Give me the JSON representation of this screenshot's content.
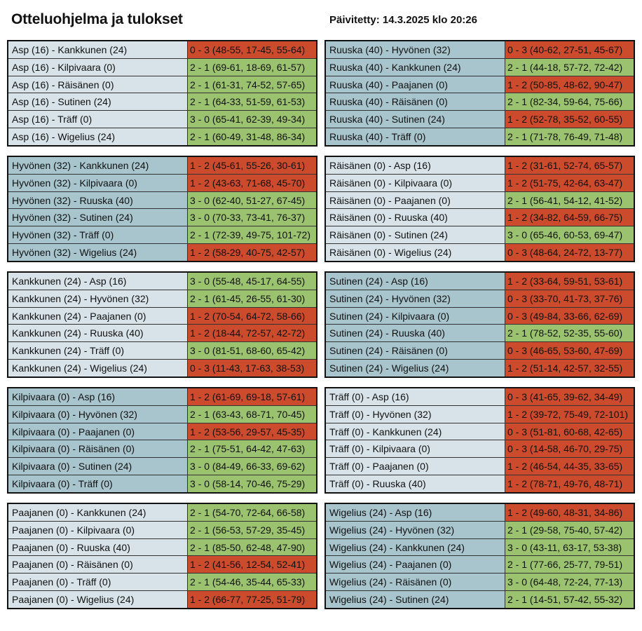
{
  "page": {
    "title": "Otteluohjelma ja tulokset",
    "updated": "Päivitetty: 14.3.2025 klo 20:26"
  },
  "groups": [
    {
      "shade": "light",
      "matches": [
        {
          "match": "Asp (16) - Kankkunen (24)",
          "result": "0 - 3 (48-55, 17-45, 55-64)",
          "outcome": "loss"
        },
        {
          "match": "Asp (16) - Kilpivaara (0)",
          "result": "2 - 1 (69-61, 18-69, 61-57)",
          "outcome": "win"
        },
        {
          "match": "Asp (16) - Räisänen (0)",
          "result": "2 - 1 (61-31, 74-52, 57-65)",
          "outcome": "win"
        },
        {
          "match": "Asp (16) - Sutinen (24)",
          "result": "2 - 1 (64-33, 51-59, 61-53)",
          "outcome": "win"
        },
        {
          "match": "Asp (16) - Träff (0)",
          "result": "3 - 0 (65-41, 62-39, 49-34)",
          "outcome": "win"
        },
        {
          "match": "Asp (16) - Wigelius (24)",
          "result": "2 - 1 (60-49, 31-48, 86-34)",
          "outcome": "win"
        }
      ]
    },
    {
      "shade": "dark",
      "matches": [
        {
          "match": "Ruuska (40) - Hyvönen (32)",
          "result": "0 - 3 (40-62, 27-51, 45-67)",
          "outcome": "loss"
        },
        {
          "match": "Ruuska (40) - Kankkunen (24)",
          "result": "2 - 1 (44-18, 57-72, 72-42)",
          "outcome": "win"
        },
        {
          "match": "Ruuska (40) - Paajanen (0)",
          "result": "1 - 2 (50-85, 48-62, 90-47)",
          "outcome": "loss"
        },
        {
          "match": "Ruuska (40) - Räisänen (0)",
          "result": "2 - 1 (82-34, 59-64, 75-66)",
          "outcome": "win"
        },
        {
          "match": "Ruuska (40) - Sutinen (24)",
          "result": "1 - 2 (52-78, 35-52, 60-55)",
          "outcome": "loss"
        },
        {
          "match": "Ruuska (40) - Träff (0)",
          "result": "2 - 1 (71-78, 76-49, 71-48)",
          "outcome": "win"
        }
      ]
    },
    {
      "shade": "dark",
      "matches": [
        {
          "match": "Hyvönen (32) - Kankkunen (24)",
          "result": "1 - 2 (45-61, 55-26, 30-61)",
          "outcome": "loss"
        },
        {
          "match": "Hyvönen (32) - Kilpivaara (0)",
          "result": "1 - 2 (43-63, 71-68, 45-70)",
          "outcome": "loss"
        },
        {
          "match": "Hyvönen (32) - Ruuska (40)",
          "result": "3 - 0 (62-40, 51-27, 67-45)",
          "outcome": "win"
        },
        {
          "match": "Hyvönen (32) - Sutinen (24)",
          "result": "3 - 0 (70-33, 73-41, 76-37)",
          "outcome": "win"
        },
        {
          "match": "Hyvönen (32) - Träff (0)",
          "result": "2 - 1 (72-39, 49-75, 101-72)",
          "outcome": "win"
        },
        {
          "match": "Hyvönen (32) - Wigelius (24)",
          "result": "1 - 2 (58-29, 40-75, 42-57)",
          "outcome": "loss"
        }
      ]
    },
    {
      "shade": "light",
      "matches": [
        {
          "match": "Räisänen (0) - Asp (16)",
          "result": "1 - 2 (31-61, 52-74, 65-57)",
          "outcome": "loss"
        },
        {
          "match": "Räisänen (0) - Kilpivaara (0)",
          "result": "1 - 2 (51-75, 42-64, 63-47)",
          "outcome": "loss"
        },
        {
          "match": "Räisänen (0) - Paajanen (0)",
          "result": "2 - 1 (56-41, 54-12, 41-52)",
          "outcome": "win"
        },
        {
          "match": "Räisänen (0) - Ruuska (40)",
          "result": "1 - 2 (34-82, 64-59, 66-75)",
          "outcome": "loss"
        },
        {
          "match": "Räisänen (0) - Sutinen (24)",
          "result": "3 - 0 (65-46, 60-53, 69-47)",
          "outcome": "win"
        },
        {
          "match": "Räisänen (0) - Wigelius (24)",
          "result": "0 - 3 (48-64, 24-72, 13-77)",
          "outcome": "loss"
        }
      ]
    },
    {
      "shade": "light",
      "matches": [
        {
          "match": "Kankkunen (24) - Asp (16)",
          "result": "3 - 0 (55-48, 45-17, 64-55)",
          "outcome": "win"
        },
        {
          "match": "Kankkunen (24) - Hyvönen (32)",
          "result": "2 - 1 (61-45, 26-55, 61-30)",
          "outcome": "win"
        },
        {
          "match": "Kankkunen (24) - Paajanen (0)",
          "result": "1 - 2 (70-54, 64-72, 58-66)",
          "outcome": "loss"
        },
        {
          "match": "Kankkunen (24) - Ruuska (40)",
          "result": "1 - 2 (18-44, 72-57, 42-72)",
          "outcome": "loss"
        },
        {
          "match": "Kankkunen (24) - Träff (0)",
          "result": "3 - 0 (81-51, 68-60, 65-42)",
          "outcome": "win"
        },
        {
          "match": "Kankkunen (24) - Wigelius (24)",
          "result": "0 - 3 (11-43, 17-63, 38-53)",
          "outcome": "loss"
        }
      ]
    },
    {
      "shade": "dark",
      "matches": [
        {
          "match": "Sutinen (24) - Asp (16)",
          "result": "1 - 2 (33-64, 59-51, 53-61)",
          "outcome": "loss"
        },
        {
          "match": "Sutinen (24) - Hyvönen (32)",
          "result": "0 - 3 (33-70, 41-73, 37-76)",
          "outcome": "loss"
        },
        {
          "match": "Sutinen (24) - Kilpivaara (0)",
          "result": "0 - 3 (49-84, 33-66, 62-69)",
          "outcome": "loss"
        },
        {
          "match": "Sutinen (24) - Ruuska (40)",
          "result": "2 - 1 (78-52, 52-35, 55-60)",
          "outcome": "win"
        },
        {
          "match": "Sutinen (24) - Räisänen (0)",
          "result": "0 - 3 (46-65, 53-60, 47-69)",
          "outcome": "loss"
        },
        {
          "match": "Sutinen (24) - Wigelius (24)",
          "result": "1 - 2 (51-14, 42-57, 32-55)",
          "outcome": "loss"
        }
      ]
    },
    {
      "shade": "dark",
      "matches": [
        {
          "match": "Kilpivaara (0) - Asp (16)",
          "result": "1 - 2 (61-69, 69-18, 57-61)",
          "outcome": "loss"
        },
        {
          "match": "Kilpivaara (0) - Hyvönen (32)",
          "result": "2 - 1 (63-43, 68-71, 70-45)",
          "outcome": "win"
        },
        {
          "match": "Kilpivaara (0) - Paajanen (0)",
          "result": "1 - 2 (53-56, 29-57, 45-35)",
          "outcome": "loss"
        },
        {
          "match": "Kilpivaara (0) - Räisänen (0)",
          "result": "2 - 1 (75-51, 64-42, 47-63)",
          "outcome": "win"
        },
        {
          "match": "Kilpivaara (0) - Sutinen (24)",
          "result": "3 - 0 (84-49, 66-33, 69-62)",
          "outcome": "win"
        },
        {
          "match": "Kilpivaara (0) - Träff (0)",
          "result": "3 - 0 (58-14, 70-46, 75-29)",
          "outcome": "win"
        }
      ]
    },
    {
      "shade": "light",
      "matches": [
        {
          "match": "Träff (0) - Asp (16)",
          "result": "0 - 3 (41-65, 39-62, 34-49)",
          "outcome": "loss"
        },
        {
          "match": "Träff (0) - Hyvönen (32)",
          "result": "1 - 2 (39-72, 75-49, 72-101)",
          "outcome": "loss"
        },
        {
          "match": "Träff (0) - Kankkunen (24)",
          "result": "0 - 3 (51-81, 60-68, 42-65)",
          "outcome": "loss"
        },
        {
          "match": "Träff (0) - Kilpivaara (0)",
          "result": "0 - 3 (14-58, 46-70, 29-75)",
          "outcome": "loss"
        },
        {
          "match": "Träff (0) - Paajanen (0)",
          "result": "1 - 2 (46-54, 44-35, 33-65)",
          "outcome": "loss"
        },
        {
          "match": "Träff (0) - Ruuska (40)",
          "result": "1 - 2 (78-71, 49-76, 48-71)",
          "outcome": "loss"
        }
      ]
    },
    {
      "shade": "light",
      "matches": [
        {
          "match": "Paajanen (0) - Kankkunen (24)",
          "result": "2 - 1 (54-70, 72-64, 66-58)",
          "outcome": "win"
        },
        {
          "match": "Paajanen (0) - Kilpivaara (0)",
          "result": "2 - 1 (56-53, 57-29, 35-45)",
          "outcome": "win"
        },
        {
          "match": "Paajanen (0) - Ruuska (40)",
          "result": "2 - 1 (85-50, 62-48, 47-90)",
          "outcome": "win"
        },
        {
          "match": "Paajanen (0) - Räisänen (0)",
          "result": "1 - 2 (41-56, 12-54, 52-41)",
          "outcome": "loss"
        },
        {
          "match": "Paajanen (0) - Träff (0)",
          "result": "2 - 1 (54-46, 35-44, 65-33)",
          "outcome": "win"
        },
        {
          "match": "Paajanen (0) - Wigelius (24)",
          "result": "1 - 2 (66-77, 77-25, 51-79)",
          "outcome": "loss"
        }
      ]
    },
    {
      "shade": "dark",
      "matches": [
        {
          "match": "Wigelius (24) - Asp (16)",
          "result": "1 - 2 (49-60, 48-31, 34-86)",
          "outcome": "loss"
        },
        {
          "match": "Wigelius (24) - Hyvönen (32)",
          "result": "2 - 1 (29-58, 75-40, 57-42)",
          "outcome": "win"
        },
        {
          "match": "Wigelius (24) - Kankkunen (24)",
          "result": "3 - 0 (43-11, 63-17, 53-38)",
          "outcome": "win"
        },
        {
          "match": "Wigelius (24) - Paajanen (0)",
          "result": "2 - 1 (77-66, 25-77, 79-51)",
          "outcome": "win"
        },
        {
          "match": "Wigelius (24) - Räisänen (0)",
          "result": "3 - 0 (64-48, 72-24, 77-13)",
          "outcome": "win"
        },
        {
          "match": "Wigelius (24) - Sutinen (24)",
          "result": "2 - 1 (14-51, 57-42, 55-32)",
          "outcome": "win"
        }
      ]
    }
  ],
  "colors": {
    "win": "#9bc36f",
    "loss": "#cc4b2c",
    "light_match_bg": "#d7e3e9",
    "dark_match_bg": "#a8c4cd",
    "border": "#111111"
  }
}
